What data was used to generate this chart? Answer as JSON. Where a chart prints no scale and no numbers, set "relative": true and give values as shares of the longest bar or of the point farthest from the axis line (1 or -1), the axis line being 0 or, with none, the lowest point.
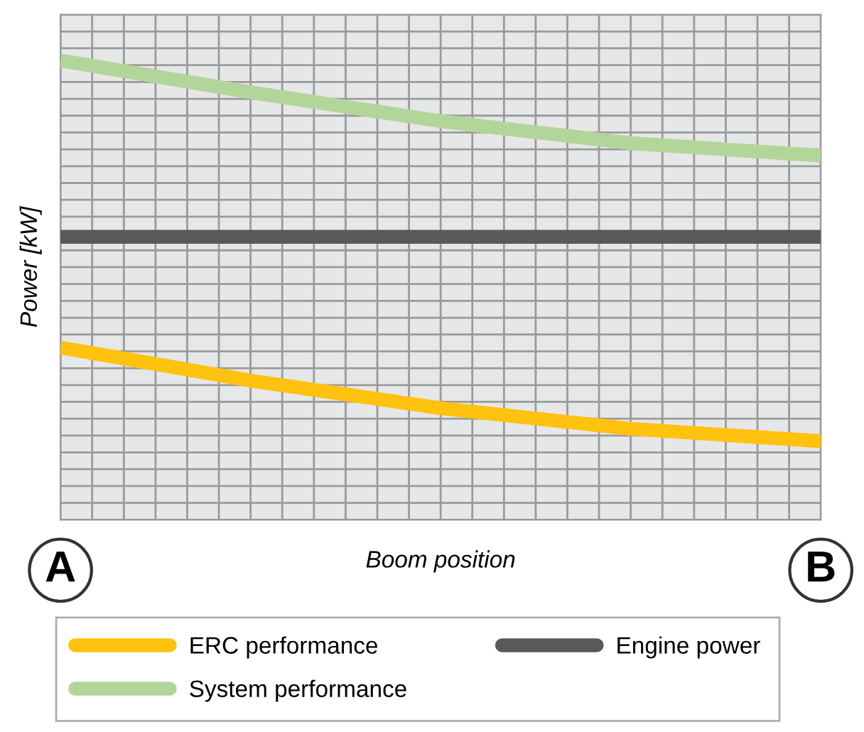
{
  "chart_data": {
    "type": "line",
    "relative": true,
    "xlabel": "Boom position",
    "ylabel": "Power [kW]",
    "categories": [
      "A",
      null,
      null,
      null,
      "B"
    ],
    "series": [
      {
        "name": "ERC performance",
        "color": "#ffc20e",
        "values": [
          0.375,
          0.303,
          0.243,
          0.198,
          0.171
        ]
      },
      {
        "name": "Engine power",
        "color": "#58595b",
        "values": [
          0.616,
          0.616,
          0.616,
          0.616,
          0.616
        ]
      },
      {
        "name": "System performance",
        "color": "#b3d59a",
        "values": [
          1,
          0.931,
          0.868,
          0.82,
          0.793
        ]
      }
    ],
    "grid": true,
    "legend": "bottom",
    "marker": "none",
    "line_style": "solid"
  }
}
